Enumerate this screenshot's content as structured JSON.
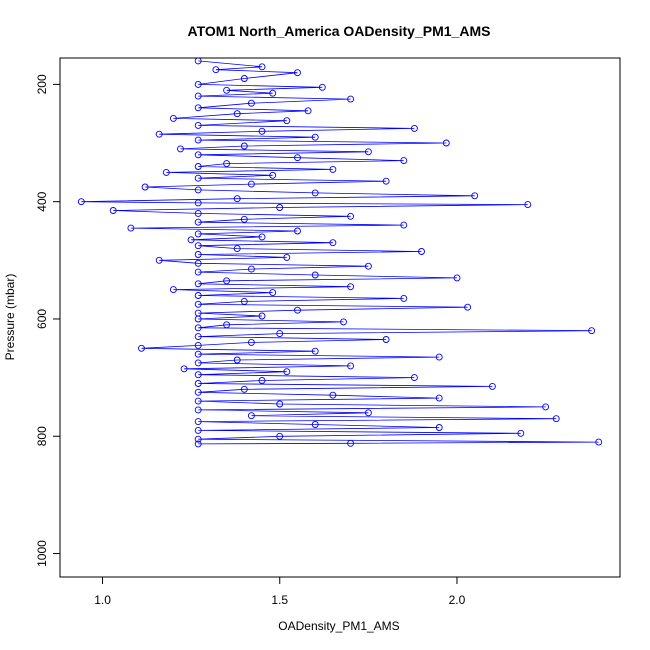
{
  "chart_data": {
    "type": "scatter",
    "title": "ATOM1 North_America OADensity_PM1_AMS",
    "xlabel": "OADensity_PM1_AMS",
    "ylabel": "Pressure (mbar)",
    "xlim": [
      0.88,
      2.46
    ],
    "ylim": [
      1040,
      155
    ],
    "y_reversed": true,
    "x_ticks": [
      "1.0",
      "1.5",
      "2.0"
    ],
    "y_ticks": [
      "200",
      "400",
      "600",
      "800",
      "1000"
    ],
    "grid": false,
    "legend": "none",
    "series": [
      {
        "style": "points-and-lines",
        "color": "#0000ff",
        "points": [
          [
            1.27,
            160
          ],
          [
            1.45,
            170
          ],
          [
            1.32,
            175
          ],
          [
            1.55,
            180
          ],
          [
            1.4,
            190
          ],
          [
            1.27,
            200
          ],
          [
            1.62,
            205
          ],
          [
            1.35,
            210
          ],
          [
            1.48,
            215
          ],
          [
            1.27,
            220
          ],
          [
            1.7,
            225
          ],
          [
            1.42,
            232
          ],
          [
            1.27,
            240
          ],
          [
            1.58,
            245
          ],
          [
            1.38,
            250
          ],
          [
            1.2,
            258
          ],
          [
            1.52,
            262
          ],
          [
            1.27,
            270
          ],
          [
            1.88,
            275
          ],
          [
            1.45,
            280
          ],
          [
            1.16,
            285
          ],
          [
            1.6,
            290
          ],
          [
            1.27,
            295
          ],
          [
            1.97,
            300
          ],
          [
            1.4,
            305
          ],
          [
            1.22,
            310
          ],
          [
            1.75,
            315
          ],
          [
            1.27,
            320
          ],
          [
            1.55,
            325
          ],
          [
            1.85,
            330
          ],
          [
            1.35,
            335
          ],
          [
            1.27,
            340
          ],
          [
            1.65,
            345
          ],
          [
            1.18,
            350
          ],
          [
            1.48,
            355
          ],
          [
            1.27,
            360
          ],
          [
            1.8,
            365
          ],
          [
            1.42,
            370
          ],
          [
            1.12,
            375
          ],
          [
            1.27,
            380
          ],
          [
            1.6,
            385
          ],
          [
            2.05,
            390
          ],
          [
            1.38,
            395
          ],
          [
            0.94,
            400
          ],
          [
            1.27,
            402
          ],
          [
            2.2,
            405
          ],
          [
            1.5,
            410
          ],
          [
            1.03,
            415
          ],
          [
            1.27,
            420
          ],
          [
            1.7,
            425
          ],
          [
            1.4,
            430
          ],
          [
            1.27,
            435
          ],
          [
            1.85,
            440
          ],
          [
            1.08,
            445
          ],
          [
            1.55,
            450
          ],
          [
            1.27,
            455
          ],
          [
            1.45,
            460
          ],
          [
            1.25,
            465
          ],
          [
            1.65,
            470
          ],
          [
            1.27,
            475
          ],
          [
            1.38,
            480
          ],
          [
            1.9,
            485
          ],
          [
            1.27,
            490
          ],
          [
            1.52,
            495
          ],
          [
            1.16,
            500
          ],
          [
            1.27,
            505
          ],
          [
            1.75,
            510
          ],
          [
            1.42,
            515
          ],
          [
            1.27,
            520
          ],
          [
            1.6,
            525
          ],
          [
            2.0,
            530
          ],
          [
            1.35,
            535
          ],
          [
            1.27,
            540
          ],
          [
            1.7,
            545
          ],
          [
            1.2,
            550
          ],
          [
            1.48,
            555
          ],
          [
            1.27,
            560
          ],
          [
            1.85,
            565
          ],
          [
            1.4,
            570
          ],
          [
            1.27,
            575
          ],
          [
            2.03,
            580
          ],
          [
            1.55,
            585
          ],
          [
            1.27,
            590
          ],
          [
            1.45,
            595
          ],
          [
            1.27,
            600
          ],
          [
            1.68,
            605
          ],
          [
            1.35,
            610
          ],
          [
            1.27,
            615
          ],
          [
            2.38,
            620
          ],
          [
            1.5,
            625
          ],
          [
            1.27,
            630
          ],
          [
            1.8,
            635
          ],
          [
            1.42,
            640
          ],
          [
            1.27,
            645
          ],
          [
            1.11,
            650
          ],
          [
            1.6,
            655
          ],
          [
            1.27,
            660
          ],
          [
            1.95,
            665
          ],
          [
            1.38,
            670
          ],
          [
            1.27,
            675
          ],
          [
            1.7,
            680
          ],
          [
            1.23,
            685
          ],
          [
            1.52,
            690
          ],
          [
            1.27,
            695
          ],
          [
            1.88,
            700
          ],
          [
            1.45,
            705
          ],
          [
            1.27,
            710
          ],
          [
            2.1,
            715
          ],
          [
            1.4,
            720
          ],
          [
            1.27,
            725
          ],
          [
            1.65,
            730
          ],
          [
            1.95,
            735
          ],
          [
            1.27,
            740
          ],
          [
            1.5,
            745
          ],
          [
            2.25,
            750
          ],
          [
            1.27,
            755
          ],
          [
            1.75,
            760
          ],
          [
            1.42,
            765
          ],
          [
            2.28,
            770
          ],
          [
            1.27,
            775
          ],
          [
            1.6,
            780
          ],
          [
            1.95,
            785
          ],
          [
            1.27,
            790
          ],
          [
            2.18,
            795
          ],
          [
            1.5,
            800
          ],
          [
            1.27,
            805
          ],
          [
            2.4,
            810
          ],
          [
            1.7,
            812
          ],
          [
            1.27,
            813
          ]
        ]
      }
    ]
  }
}
